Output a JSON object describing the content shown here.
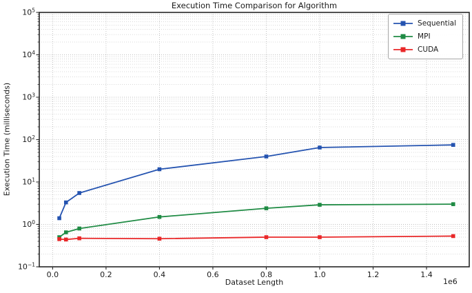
{
  "chart_data": {
    "type": "line",
    "title": "Execution Time Comparison for Algorithm",
    "xlabel": "Dataset Length",
    "ylabel": "Execution Time (milliseconds)",
    "x_offset_label": "1e6",
    "x_scale": "linear",
    "y_scale": "log",
    "xlim": [
      -50000,
      1560000
    ],
    "ylim": [
      0.1,
      100000
    ],
    "grid": "major+minor, dotted, light-gray",
    "legend_position": "upper-right",
    "x_ticks": {
      "values": [
        0,
        200000,
        400000,
        600000,
        800000,
        1000000,
        1200000,
        1400000
      ],
      "labels": [
        "0.0",
        "0.2",
        "0.4",
        "0.6",
        "0.8",
        "1.0",
        "1.2",
        "1.4"
      ]
    },
    "y_ticks": {
      "base": "10",
      "exponents": [
        -1,
        0,
        1,
        2,
        3,
        4,
        5
      ]
    },
    "x": [
      25000,
      50000,
      100000,
      400000,
      800000,
      1000000,
      1500000
    ],
    "series": [
      {
        "name": "Sequential",
        "color": "#2453b0",
        "marker": "square",
        "values": [
          1.4,
          3.3,
          5.5,
          20,
          40,
          65,
          75
        ]
      },
      {
        "name": "MPI",
        "color": "#1f8b44",
        "marker": "square",
        "values": [
          0.5,
          0.65,
          0.8,
          1.5,
          2.4,
          2.9,
          3.0
        ]
      },
      {
        "name": "CUDA",
        "color": "#e92728",
        "marker": "square",
        "values": [
          0.45,
          0.44,
          0.47,
          0.46,
          0.5,
          0.5,
          0.53
        ]
      }
    ],
    "style": {
      "spine_color": "#262626",
      "tick_color": "#262626",
      "grid_major_color": "#bdbdbd",
      "grid_minor_color": "#cccccc",
      "text_color": "#1a1a1a"
    }
  }
}
